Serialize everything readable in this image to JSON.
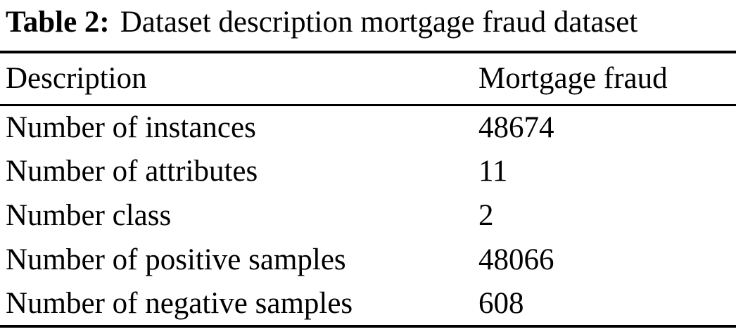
{
  "colors": {
    "text": "#000000",
    "background": "#ffffff",
    "rule": "#000000"
  },
  "caption": {
    "label": "Table 2:",
    "text": "Dataset description mortgage fraud dataset"
  },
  "table": {
    "columns": [
      "Description",
      "Mortgage fraud"
    ],
    "rows": [
      {
        "description": "Number of instances",
        "value": "48674"
      },
      {
        "description": "Number of attributes",
        "value": "11"
      },
      {
        "description": "Number class",
        "value": "2"
      },
      {
        "description": "Number of positive samples",
        "value": "48066"
      },
      {
        "description": "Number of negative samples",
        "value": "608"
      }
    ]
  }
}
